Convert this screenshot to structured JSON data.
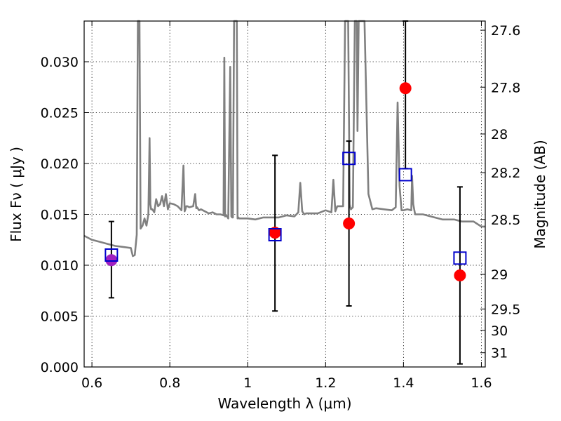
{
  "chart_data": {
    "type": "scatter",
    "xlabel": "Wavelength  λ (μm)",
    "ylabel_left": "Flux  Fν  ( μJy )",
    "ylabel_right": "Magnitude (AB)",
    "xlim": [
      0.58,
      1.61
    ],
    "ylim": [
      0.0,
      0.034
    ],
    "x_ticks": [
      0.6,
      0.8,
      1.0,
      1.2,
      1.4,
      1.6
    ],
    "x_tick_labels": [
      "0.6",
      "0.8",
      "1",
      "1.2",
      "1.4",
      "1.6"
    ],
    "y_ticks": [
      0.0,
      0.005,
      0.01,
      0.015,
      0.02,
      0.025,
      0.03
    ],
    "y_tick_labels": [
      "0.000",
      "0.005",
      "0.010",
      "0.015",
      "0.020",
      "0.025",
      "0.030"
    ],
    "right_ticks": [
      {
        "flux": 0.0331,
        "label": "27.6"
      },
      {
        "flux": 0.0275,
        "label": "27.8"
      },
      {
        "flux": 0.0229,
        "label": "28"
      },
      {
        "flux": 0.0191,
        "label": "28.2"
      },
      {
        "flux": 0.0145,
        "label": "28.5"
      },
      {
        "flux": 0.0091,
        "label": "29"
      },
      {
        "flux": 0.0057,
        "label": "29.5"
      },
      {
        "flux": 0.0036,
        "label": "30"
      },
      {
        "flux": 0.0014,
        "label": "31"
      }
    ],
    "grid": true,
    "colors": {
      "model": "#808080",
      "errorbar": "#000000",
      "model_flux_box": "#0000cc",
      "observed": "#ff0000",
      "observed_first": "#a020c0"
    },
    "series": [
      {
        "name": "Model spectrum",
        "style": "line",
        "x": [
          0.58,
          0.6,
          0.62,
          0.64,
          0.66,
          0.68,
          0.7,
          0.705,
          0.71,
          0.715,
          0.718,
          0.72,
          0.722,
          0.725,
          0.73,
          0.735,
          0.74,
          0.745,
          0.748,
          0.75,
          0.752,
          0.755,
          0.76,
          0.765,
          0.77,
          0.775,
          0.78,
          0.785,
          0.79,
          0.795,
          0.8,
          0.81,
          0.82,
          0.83,
          0.835,
          0.838,
          0.84,
          0.842,
          0.845,
          0.85,
          0.86,
          0.865,
          0.868,
          0.87,
          0.875,
          0.88,
          0.89,
          0.9,
          0.91,
          0.92,
          0.93,
          0.938,
          0.94,
          0.942,
          0.945,
          0.95,
          0.955,
          0.958,
          0.96,
          0.962,
          0.965,
          0.97,
          0.972,
          0.974,
          0.976,
          0.978,
          0.98,
          1.0,
          1.02,
          1.04,
          1.06,
          1.08,
          1.1,
          1.12,
          1.13,
          1.135,
          1.14,
          1.145,
          1.15,
          1.18,
          1.2,
          1.215,
          1.22,
          1.225,
          1.23,
          1.245,
          1.25,
          1.258,
          1.262,
          1.265,
          1.27,
          1.275,
          1.28,
          1.282,
          1.285,
          1.288,
          1.29,
          1.295,
          1.3,
          1.31,
          1.32,
          1.33,
          1.35,
          1.37,
          1.38,
          1.385,
          1.39,
          1.395,
          1.4,
          1.41,
          1.42,
          1.422,
          1.425,
          1.428,
          1.43,
          1.45,
          1.48,
          1.5,
          1.53,
          1.55,
          1.58,
          1.6,
          1.61
        ],
        "y": [
          0.0129,
          0.0125,
          0.0123,
          0.0121,
          0.0119,
          0.0118,
          0.0117,
          0.0109,
          0.011,
          0.013,
          0.034,
          0.034,
          0.034,
          0.0136,
          0.0139,
          0.0146,
          0.0139,
          0.015,
          0.0225,
          0.016,
          0.0155,
          0.0155,
          0.0152,
          0.0165,
          0.0158,
          0.016,
          0.0168,
          0.0158,
          0.017,
          0.0155,
          0.0161,
          0.016,
          0.0158,
          0.0154,
          0.0198,
          0.0153,
          0.0155,
          0.0158,
          0.0158,
          0.0157,
          0.0158,
          0.017,
          0.0156,
          0.0157,
          0.0154,
          0.0155,
          0.0153,
          0.0151,
          0.0152,
          0.015,
          0.015,
          0.0149,
          0.0304,
          0.0148,
          0.0149,
          0.0146,
          0.0295,
          0.0148,
          0.0147,
          0.0147,
          0.034,
          0.034,
          0.034,
          0.0146,
          0.0147,
          0.0146,
          0.0146,
          0.0146,
          0.0145,
          0.0147,
          0.0147,
          0.0147,
          0.0149,
          0.0148,
          0.0152,
          0.0181,
          0.0153,
          0.015,
          0.0151,
          0.0151,
          0.0154,
          0.0152,
          0.0184,
          0.0153,
          0.0158,
          0.0158,
          0.034,
          0.034,
          0.016,
          0.0155,
          0.0157,
          0.034,
          0.034,
          0.0232,
          0.034,
          0.034,
          0.034,
          0.034,
          0.034,
          0.017,
          0.0155,
          0.0156,
          0.0155,
          0.0154,
          0.0157,
          0.026,
          0.0178,
          0.0154,
          0.0154,
          0.0155,
          0.0154,
          0.0188,
          0.016,
          0.0154,
          0.015,
          0.015,
          0.0147,
          0.0145,
          0.0145,
          0.0143,
          0.0143,
          0.0138,
          0.0138
        ]
      },
      {
        "name": "Observed flux",
        "style": "errorbar",
        "x": [
          0.65,
          1.07,
          1.26,
          1.405,
          1.545
        ],
        "y": [
          0.0105,
          0.0132,
          0.0141,
          0.0274,
          0.009
        ],
        "yerr_low": [
          0.0068,
          0.0055,
          0.006,
          0.0195,
          0.0003
        ],
        "yerr_high": [
          0.0143,
          0.0208,
          0.0222,
          0.034,
          0.0177
        ]
      },
      {
        "name": "Model band flux",
        "style": "square",
        "x": [
          0.65,
          1.07,
          1.26,
          1.405,
          1.545
        ],
        "y": [
          0.011,
          0.013,
          0.0205,
          0.0189,
          0.0107
        ]
      }
    ]
  }
}
